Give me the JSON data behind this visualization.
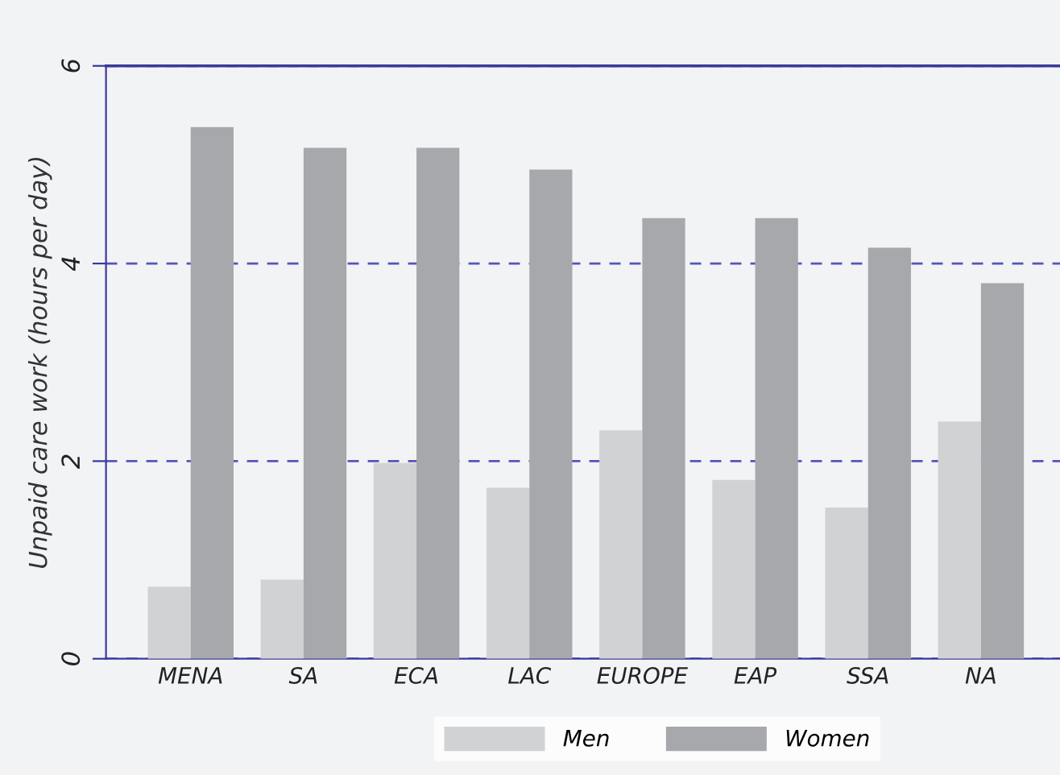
{
  "chart_data": {
    "type": "bar",
    "ylabel": "Unpaid care work (hours per day)",
    "categories": [
      "MENA",
      "SA",
      "ECA",
      "LAC",
      "EUROPE",
      "EAP",
      "SSA",
      "NA"
    ],
    "series": [
      {
        "name": "Men",
        "color": "#d1d2d4",
        "values": [
          0.73,
          0.8,
          1.98,
          1.73,
          2.31,
          1.81,
          1.53,
          2.4
        ]
      },
      {
        "name": "Women",
        "color": "#a7a8ac",
        "values": [
          5.38,
          5.17,
          5.17,
          4.95,
          4.46,
          4.46,
          4.16,
          3.8
        ]
      }
    ],
    "ylim": [
      0,
      6
    ],
    "yticks": [
      0,
      2,
      4,
      6
    ],
    "grid": "y",
    "legend": "bottom"
  }
}
